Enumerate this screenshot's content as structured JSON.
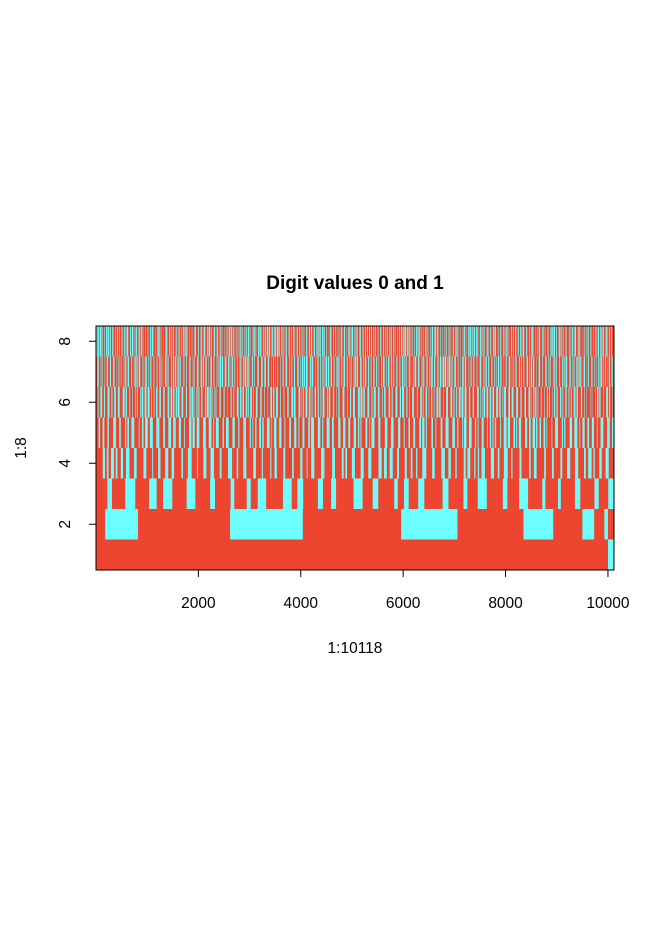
{
  "chart_data": {
    "type": "heatmap",
    "title": "Digit values 0 and 1",
    "xlabel": "1:10118",
    "ylabel": "1:8",
    "xlim": [
      1,
      10118
    ],
    "ylim": [
      0.5,
      8.5
    ],
    "x_ticks": [
      {
        "value": 2000,
        "label": "2000"
      },
      {
        "value": 4000,
        "label": "4000"
      },
      {
        "value": 6000,
        "label": "6000"
      },
      {
        "value": 8000,
        "label": "8000"
      },
      {
        "value": 10000,
        "label": "10000"
      }
    ],
    "y_ticks": [
      {
        "value": 2,
        "label": "2"
      },
      {
        "value": 4,
        "label": "4"
      },
      {
        "value": 6,
        "label": "6"
      },
      {
        "value": 8,
        "label": "8"
      }
    ],
    "value_colors": {
      "0": "#EE4530",
      "1": "#6CFEFE"
    },
    "grid": false,
    "legend": "none",
    "rows": [
      {
        "row": 1,
        "ones_intervals": [
          [
            10000,
            10118
          ]
        ]
      },
      {
        "row": 2,
        "ones_intervals": [
          [
            180,
            820
          ],
          [
            2620,
            4040
          ],
          [
            5960,
            7060
          ],
          [
            8350,
            8930
          ],
          [
            9500,
            9730
          ],
          [
            9930,
            10000
          ]
        ]
      },
      {
        "row": 3,
        "pattern": "alternating",
        "approx_period": 340,
        "approx_one_fraction": 0.35
      },
      {
        "row": 4,
        "pattern": "alternating",
        "approx_period": 140,
        "approx_one_fraction": 0.35
      },
      {
        "row": 5,
        "pattern": "alternating",
        "approx_period": 90,
        "approx_one_fraction": 0.4
      },
      {
        "row": 6,
        "pattern": "alternating",
        "approx_period": 60,
        "approx_one_fraction": 0.4
      },
      {
        "row": 7,
        "pattern": "alternating",
        "approx_period": 48,
        "approx_one_fraction": 0.42
      },
      {
        "row": 8,
        "pattern": "alternating",
        "approx_period": 40,
        "approx_one_fraction": 0.42
      }
    ]
  }
}
